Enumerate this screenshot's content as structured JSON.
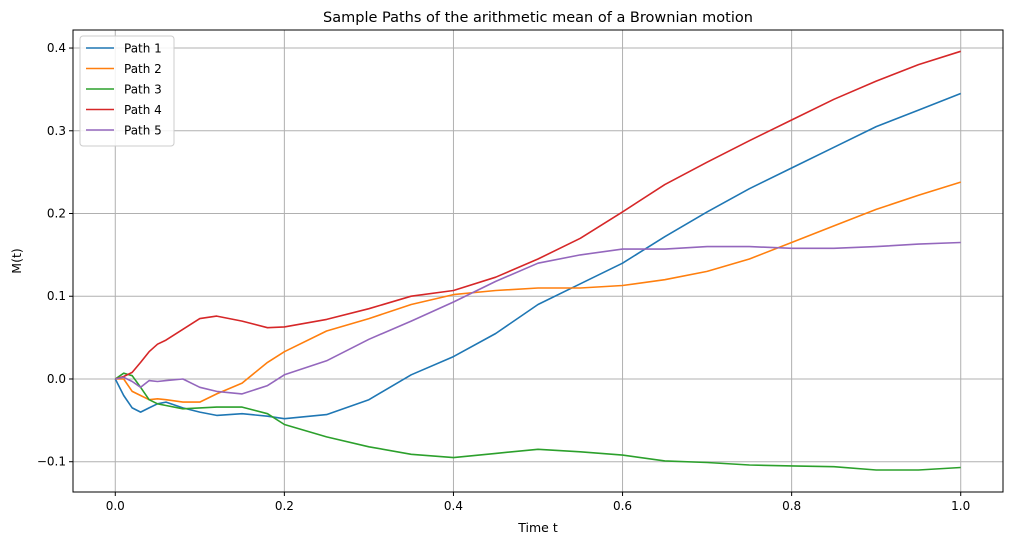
{
  "chart_data": {
    "type": "line",
    "title": "Sample Paths of the arithmetic mean of a Brownian motion",
    "xlabel": "Time t",
    "ylabel": "M(t)",
    "xlim": [
      -0.05,
      1.05
    ],
    "ylim": [
      -0.1366,
      0.4218
    ],
    "xticks": [
      "0.0",
      "0.2",
      "0.4",
      "0.6",
      "0.8",
      "1.0"
    ],
    "yticks": [
      "−0.1",
      "0.0",
      "0.1",
      "0.2",
      "0.3",
      "0.4"
    ],
    "xtick_values": [
      0,
      0.2,
      0.4,
      0.6,
      0.8,
      1.0
    ],
    "ytick_values": [
      -0.1,
      0,
      0.1,
      0.2,
      0.3,
      0.4
    ],
    "grid": true,
    "legend": "top-left",
    "x": [
      0,
      0.01,
      0.02,
      0.03,
      0.04,
      0.05,
      0.06,
      0.08,
      0.1,
      0.12,
      0.15,
      0.18,
      0.2,
      0.25,
      0.3,
      0.35,
      0.4,
      0.45,
      0.5,
      0.55,
      0.6,
      0.65,
      0.7,
      0.75,
      0.8,
      0.85,
      0.9,
      0.95,
      1.0
    ],
    "series": [
      {
        "name": "Path 1",
        "color": "#1f77b4",
        "values": [
          0,
          -0.02,
          -0.035,
          -0.04,
          -0.035,
          -0.03,
          -0.028,
          -0.035,
          -0.04,
          -0.044,
          -0.042,
          -0.045,
          -0.048,
          -0.043,
          -0.025,
          0.005,
          0.027,
          0.055,
          0.09,
          0.115,
          0.14,
          0.172,
          0.202,
          0.23,
          0.255,
          0.28,
          0.305,
          0.325,
          0.345
        ]
      },
      {
        "name": "Path 2",
        "color": "#ff7f0e",
        "values": [
          0,
          0,
          -0.015,
          -0.02,
          -0.025,
          -0.024,
          -0.025,
          -0.028,
          -0.028,
          -0.018,
          -0.005,
          0.02,
          0.033,
          0.058,
          0.073,
          0.09,
          0.102,
          0.107,
          0.11,
          0.11,
          0.113,
          0.12,
          0.13,
          0.145,
          0.165,
          0.185,
          0.205,
          0.222,
          0.238
        ]
      },
      {
        "name": "Path 3",
        "color": "#2ca02c",
        "values": [
          0,
          0.007,
          0.004,
          -0.01,
          -0.025,
          -0.03,
          -0.032,
          -0.036,
          -0.035,
          -0.034,
          -0.034,
          -0.042,
          -0.055,
          -0.07,
          -0.082,
          -0.091,
          -0.095,
          -0.09,
          -0.085,
          -0.088,
          -0.092,
          -0.099,
          -0.101,
          -0.104,
          -0.105,
          -0.106,
          -0.11,
          -0.11,
          -0.107
        ]
      },
      {
        "name": "Path 4",
        "color": "#d62728",
        "values": [
          0,
          0.003,
          0.008,
          0.02,
          0.033,
          0.042,
          0.047,
          0.06,
          0.073,
          0.076,
          0.07,
          0.062,
          0.063,
          0.072,
          0.085,
          0.1,
          0.107,
          0.123,
          0.145,
          0.17,
          0.202,
          0.235,
          0.262,
          0.288,
          0.313,
          0.338,
          0.36,
          0.38,
          0.396
        ]
      },
      {
        "name": "Path 5",
        "color": "#9467bd",
        "values": [
          0,
          0.002,
          -0.003,
          -0.01,
          -0.002,
          -0.003,
          -0.002,
          0,
          -0.01,
          -0.015,
          -0.018,
          -0.008,
          0.005,
          0.022,
          0.048,
          0.07,
          0.093,
          0.118,
          0.14,
          0.15,
          0.157,
          0.157,
          0.16,
          0.16,
          0.158,
          0.158,
          0.16,
          0.163,
          0.165
        ]
      }
    ]
  }
}
